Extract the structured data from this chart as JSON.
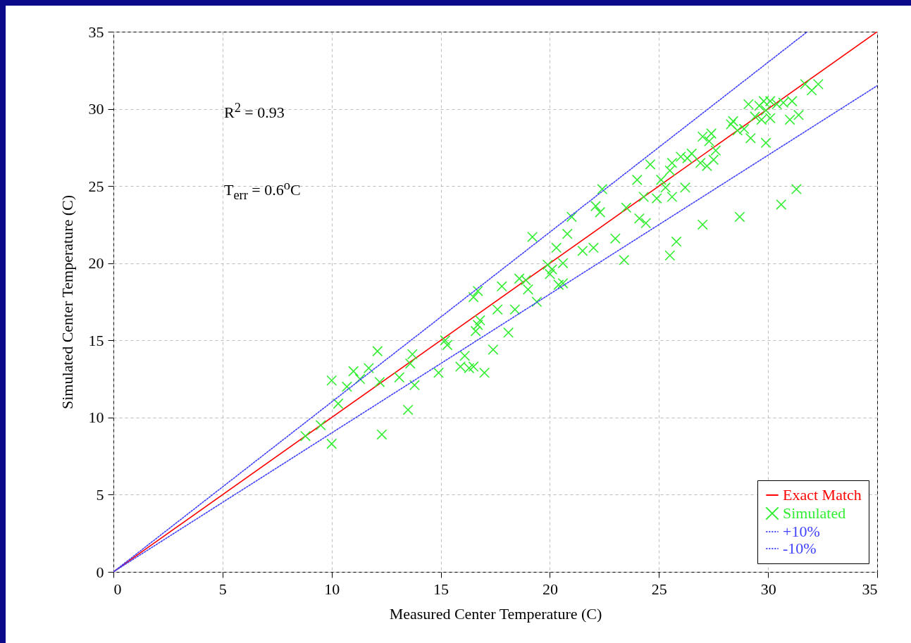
{
  "chart_data": {
    "type": "scatter",
    "xlabel": "Measured Center Temperature (C)",
    "ylabel": "Simulated Center Temperature (C)",
    "annotations": [
      "R$^{2}$ = 0.93",
      "T$_{err}$ = 0.6$^{o}$C"
    ],
    "xlim": [
      0,
      35
    ],
    "ylim": [
      0,
      35
    ],
    "xticks": [
      0,
      5,
      10,
      15,
      20,
      25,
      30,
      35
    ],
    "yticks": [
      0,
      5,
      10,
      15,
      20,
      25,
      30,
      35
    ],
    "grid": true,
    "legend": "bottom right",
    "series": [
      {
        "name": "Exact Match",
        "type": "line",
        "color": "#ff0000",
        "line_style": "solid",
        "x": [
          0,
          35
        ],
        "values": [
          0,
          35
        ]
      },
      {
        "name": "Simulated",
        "color": "#33ee33",
        "marker": "cross",
        "x": [
          8.8,
          9.5,
          10,
          10,
          10.3,
          10.7,
          11,
          11.3,
          11.7,
          12.1,
          12.2,
          12.3,
          13.1,
          13.5,
          13.6,
          13.7,
          13.8,
          14.9,
          15.2,
          15.3,
          15.9,
          16.1,
          16.3,
          16.5,
          16.5,
          16.7,
          16.6,
          16.7,
          16.8,
          17,
          17.4,
          17.6,
          17.8,
          18.1,
          18.4,
          18.6,
          18.9,
          19,
          19.2,
          19.4,
          19.9,
          20,
          20.1,
          20.3,
          20.4,
          20.6,
          20.6,
          20.8,
          21,
          21.5,
          22,
          22.1,
          22.3,
          22.4,
          23,
          23.4,
          23.5,
          24,
          24.1,
          24.3,
          24.4,
          24.6,
          24.9,
          25.1,
          25.3,
          25.5,
          25.5,
          25.6,
          25.6,
          25.8,
          26,
          26.2,
          26.3,
          26.5,
          26.9,
          27,
          27,
          27.2,
          27.3,
          27.4,
          27.5,
          27.6,
          28.3,
          28.4,
          28.6,
          28.7,
          28.9,
          29.1,
          29.2,
          29.4,
          29.6,
          29.7,
          29.8,
          29.9,
          29.9,
          30.1,
          30.1,
          30.4,
          30.6,
          30.7,
          31,
          31.1,
          31.3,
          31.4,
          31.7,
          32,
          32.3
        ],
        "values": [
          8.8,
          9.5,
          12.4,
          8.3,
          10.9,
          12,
          13,
          12.5,
          13.2,
          14.3,
          12.3,
          8.9,
          12.6,
          10.5,
          13.5,
          14.1,
          12.1,
          12.9,
          15,
          14.7,
          13.3,
          14,
          13.2,
          13.3,
          17.8,
          18.2,
          15.6,
          16,
          16.3,
          12.9,
          14.4,
          17,
          18.5,
          15.5,
          17,
          19,
          18.9,
          18.3,
          21.7,
          17.5,
          19.9,
          19.3,
          19.6,
          21,
          18.6,
          18.7,
          20,
          21.9,
          23,
          20.8,
          21,
          23.7,
          23.3,
          24.8,
          21.6,
          20.2,
          23.6,
          25.4,
          22.9,
          24.3,
          22.6,
          26.4,
          24.2,
          25.4,
          24.9,
          26,
          20.5,
          24.3,
          26.5,
          21.4,
          26.9,
          24.9,
          26.8,
          27.1,
          26.5,
          22.5,
          28.2,
          26.3,
          27.9,
          28.4,
          26.7,
          27.3,
          29,
          29.2,
          28.6,
          23,
          28.7,
          30.3,
          28.1,
          29.5,
          30.2,
          29.3,
          30.5,
          27.8,
          29.9,
          30.5,
          29.4,
          30.3,
          23.8,
          30.4,
          29.3,
          30.5,
          24.8,
          29.6,
          31.6,
          31.2,
          31.6
        ]
      },
      {
        "name": "+10%",
        "type": "line",
        "color": "#4040ff",
        "line_style": "dotted",
        "x": [
          0,
          31.8
        ],
        "values": [
          0,
          35
        ]
      },
      {
        "name": "-10%",
        "type": "line",
        "color": "#4040ff",
        "line_style": "dotted",
        "x": [
          0,
          35
        ],
        "values": [
          0,
          31.5
        ]
      }
    ]
  }
}
